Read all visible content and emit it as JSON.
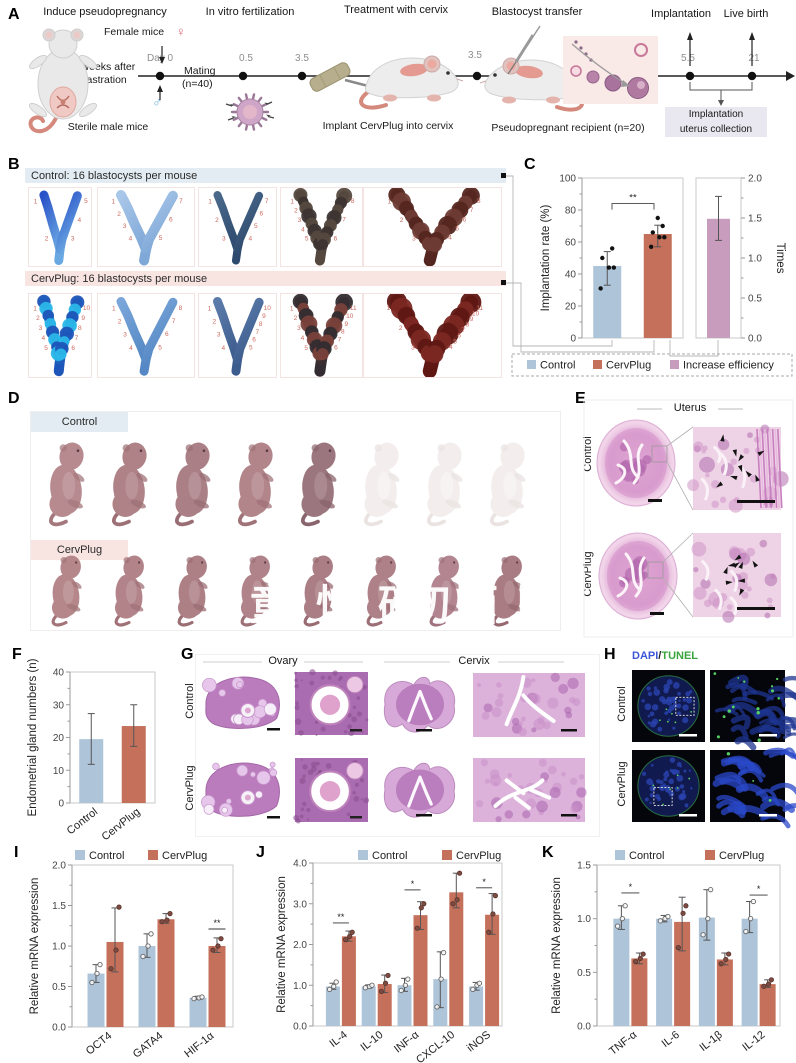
{
  "colors": {
    "control": "#aec4d9",
    "cervplug": "#c4705a",
    "increase": "#c79cbc",
    "red_number": "#cc6a5f",
    "dapi_blue": "#3d56d6",
    "tunel_green": "#3aa53f"
  },
  "panels": {
    "a": {
      "label": "A",
      "steps": [
        "Induce pseudopregnancy",
        "In vitro fertilization",
        "Treatment with cervix",
        "Blastocyst transfer",
        "Implantation",
        "Live birth"
      ],
      "female_mice": "Female mice",
      "female_symbol": "♀",
      "male_symbol": "♂",
      "day0": "Day 0",
      "weeks": "2 weeks after",
      "castration": "castration",
      "mating": "Mating",
      "mating_n": "(n=40)",
      "sterile": "Sterile male mice",
      "timepoints": [
        "0.5",
        "3.5",
        "3.5",
        "5.5",
        "21"
      ],
      "implant": "Implant CervPlug into cervix",
      "recipient": "Pseudopregnant recipient (n=20)",
      "collection": [
        "Implantation",
        "uterus collection"
      ]
    },
    "b": {
      "label": "B",
      "control_header": "Control: 16 blastocysts per mouse",
      "cervplug_header": "CervPlug: 16 blastocysts per mouse"
    },
    "c": {
      "label": "C"
    },
    "d": {
      "label": "D",
      "control": "Control",
      "cervplug": "CervPlug",
      "watermark": "童怛砖切陌卜"
    },
    "e": {
      "label": "E",
      "title": "Uterus",
      "rows": [
        "Control",
        "CervPlug"
      ]
    },
    "f": {
      "label": "F"
    },
    "g": {
      "label": "G",
      "titles": [
        "Ovary",
        "Cervix"
      ],
      "rows": [
        "Control",
        "CervPlug"
      ]
    },
    "h": {
      "label": "H",
      "title_parts": [
        "DAPI",
        "/",
        "TUNEL"
      ],
      "rows": [
        "Control",
        "CervPlug"
      ]
    },
    "i": {
      "label": "I"
    },
    "j": {
      "label": "J"
    },
    "k": {
      "label": "K"
    }
  },
  "b_images": {
    "control": [
      {
        "color": "#2a52c8",
        "color2": "#6aa8e2",
        "w": 9,
        "beads": false,
        "nums_l": [
          "1",
          "2"
        ],
        "nums_r": [
          "3",
          "4",
          "5"
        ]
      },
      {
        "color": "#a9c7e9",
        "color2": "#7fa8d8",
        "w": 10,
        "beads": false,
        "nums_l": [
          "1",
          "2",
          "3",
          "4"
        ],
        "nums_r": [
          "5",
          "6",
          "7"
        ]
      },
      {
        "color": "#49688a",
        "color2": "#2e4a6e",
        "w": 8,
        "beads": false,
        "nums_l": [
          "1",
          "2",
          "3"
        ],
        "nums_r": [
          "4",
          "5",
          "6",
          "7"
        ]
      },
      {
        "color": "#3d3533",
        "color2": "#55493f",
        "w": 10,
        "beads": true,
        "nums_l": [
          "1",
          "2",
          "3",
          "4",
          "5"
        ],
        "nums_r": [
          "6",
          "7",
          "8"
        ]
      },
      {
        "color": "#6e3b34",
        "color2": "#54261f",
        "w": 12,
        "beads": true,
        "nums_l": [
          "1",
          "2",
          "3"
        ],
        "nums_r": [
          "4",
          "5",
          "6",
          "7",
          "8"
        ]
      }
    ],
    "cervplug": [
      {
        "color": "#2bb7e8",
        "color2": "#1d55b8",
        "w": 10,
        "beads": true,
        "nums_l": [
          "1",
          "2",
          "3",
          "4",
          "5"
        ],
        "nums_r": [
          "6",
          "7",
          "8",
          "9",
          "10"
        ]
      },
      {
        "color": "#7aa6da",
        "color2": "#5588c4",
        "w": 9,
        "beads": false,
        "nums_l": [
          "1",
          "2",
          "3",
          "4"
        ],
        "nums_r": [
          "5",
          "6",
          "7",
          "8"
        ]
      },
      {
        "color": "#5b7cab",
        "color2": "#3d5c8e",
        "w": 9,
        "beads": false,
        "nums_l": [
          "1",
          "2",
          "3",
          "4"
        ],
        "nums_r": [
          "5",
          "6",
          "7",
          "8",
          "9",
          "10"
        ]
      },
      {
        "color": "#79413a",
        "color2": "#332c30",
        "w": 11,
        "beads": true,
        "nums_l": [
          "1",
          "2",
          "3",
          "4",
          "5"
        ],
        "nums_r": [
          "6",
          "7",
          "8",
          "9",
          "10",
          "11"
        ]
      },
      {
        "color": "#7c2822",
        "color2": "#5e1713",
        "w": 14,
        "beads": true,
        "nums_l": [
          "1",
          "2",
          "3"
        ],
        "nums_r": [
          "4",
          "5",
          "6",
          "7",
          "8",
          "9",
          "10",
          "11"
        ]
      }
    ]
  },
  "d_pups": {
    "control": [
      "#b68a8e",
      "#af8287",
      "#aa7f86",
      "#b2858a",
      "#9c767e",
      "ghost",
      "ghost",
      "ghost"
    ],
    "cervplug": [
      "#b5878b",
      "#b2848a",
      "#ad8086",
      "#b08289",
      "#ab7d84",
      "#ae8188",
      "#b28590",
      "#a97c83"
    ]
  },
  "chart_data": [
    {
      "id": "C",
      "type": "bar",
      "ylabel": "Implantation rate (%)",
      "ylim": [
        0,
        100
      ],
      "yticks": [
        0,
        20,
        40,
        60,
        80,
        100
      ],
      "groups": [
        {
          "cat": "Control",
          "bars": [
            {
              "series": "Control",
              "v": 45,
              "e": [
                33,
                54
              ],
              "dots": [
                31,
                44,
                44,
                50,
                56
              ]
            }
          ]
        },
        {
          "cat": "CervPlug",
          "bars": [
            {
              "series": "CervPlug",
              "v": 65,
              "e": [
                57,
                70.5
              ],
              "dots": [
                57,
                63,
                63,
                66,
                70,
                75
              ]
            }
          ]
        }
      ],
      "significance": [
        {
          "label": "**",
          "y": 84
        }
      ],
      "secondary": {
        "ylabel": "Times",
        "ylim": [
          0,
          2
        ],
        "yticks": [
          "0.0",
          "0.5",
          "1.0",
          "1.5",
          "2.0"
        ],
        "bar": {
          "series": "Increase efficiency",
          "v": 1.49,
          "e": [
            1.22,
            1.77
          ]
        }
      },
      "legend": [
        "Control",
        "CervPlug",
        "Increase efficiency"
      ]
    },
    {
      "id": "F",
      "type": "bar",
      "ylabel": "Endometrial gland numbers (n)",
      "ylim": [
        0,
        40
      ],
      "yticks": [
        0,
        10,
        20,
        30,
        40
      ],
      "groups": [
        {
          "cat": "Control",
          "bars": [
            {
              "series": "Control",
              "v": 19.5,
              "e": [
                11.8,
                27.3
              ]
            }
          ]
        },
        {
          "cat": "CervPlug",
          "bars": [
            {
              "series": "CervPlug",
              "v": 23.5,
              "e": [
                17.3,
                30
              ]
            }
          ]
        }
      ]
    },
    {
      "id": "I",
      "type": "bar",
      "ylabel": "Relative mRNA expression",
      "ylim": [
        0,
        2
      ],
      "yticks": [
        "0.0",
        "0.5",
        "1.0",
        "1.5",
        "2.0"
      ],
      "legend": [
        "Control",
        "CervPlug"
      ],
      "groups": [
        {
          "cat": "OCT4",
          "bars": [
            {
              "v": 0.66,
              "e": [
                0.55,
                0.77
              ],
              "dots": [
                0.55,
                0.66,
                0.77
              ]
            },
            {
              "v": 1.05,
              "e": [
                0.68,
                1.47
              ],
              "dots": [
                0.72,
                0.95,
                1.48
              ]
            }
          ]
        },
        {
          "cat": "GATA4",
          "bars": [
            {
              "v": 1.0,
              "e": [
                0.86,
                1.15
              ],
              "dots": [
                0.87,
                1.0,
                1.15
              ]
            },
            {
              "v": 1.33,
              "e": [
                1.28,
                1.4
              ],
              "dots": [
                1.3,
                1.32,
                1.4
              ]
            }
          ]
        },
        {
          "cat": "HIF-1α",
          "bars": [
            {
              "v": 0.36,
              "e": [
                0.34,
                0.38
              ],
              "dots": [
                0.35,
                0.36,
                0.37
              ]
            },
            {
              "v": 1.0,
              "e": [
                0.92,
                1.1
              ],
              "dots": [
                0.95,
                1.0,
                1.09
              ]
            }
          ]
        }
      ],
      "significance": [
        {
          "label": "**",
          "g": 2,
          "span": "bar2",
          "y": 1.21
        }
      ]
    },
    {
      "id": "J",
      "type": "bar",
      "ylabel": "Relative mRNA expression",
      "ylim": [
        0,
        4
      ],
      "yticks": [
        "0.0",
        "1.0",
        "2.0",
        "3.0",
        "4.0"
      ],
      "legend": [
        "Control",
        "CervPlug"
      ],
      "groups": [
        {
          "cat": "IL-4",
          "bars": [
            {
              "v": 0.97,
              "e": [
                0.9,
                1.05
              ],
              "dots": [
                0.9,
                0.97,
                1.08
              ]
            },
            {
              "v": 2.2,
              "e": [
                2.08,
                2.33
              ],
              "dots": [
                2.12,
                2.2,
                2.3
              ]
            }
          ]
        },
        {
          "cat": "IL-10",
          "bars": [
            {
              "v": 0.97,
              "e": [
                0.93,
                1.01
              ],
              "dots": [
                0.94,
                0.97,
                1.0
              ]
            },
            {
              "v": 1.03,
              "e": [
                0.82,
                1.25
              ],
              "dots": [
                0.85,
                1.05,
                1.24
              ]
            }
          ]
        },
        {
          "cat": "INF-α",
          "bars": [
            {
              "v": 1.0,
              "e": [
                0.85,
                1.17
              ],
              "dots": [
                0.87,
                1.0,
                1.15
              ]
            },
            {
              "v": 2.72,
              "e": [
                2.37,
                3.05
              ],
              "dots": [
                2.4,
                2.9,
                3.0
              ]
            }
          ]
        },
        {
          "cat": "CXCL-10",
          "bars": [
            {
              "v": 1.15,
              "e": [
                0.45,
                1.82
              ],
              "dots": [
                0.47,
                1.15,
                1.8
              ]
            },
            {
              "v": 3.28,
              "e": [
                2.9,
                3.75
              ],
              "dots": [
                3.0,
                3.1,
                3.75
              ]
            }
          ]
        },
        {
          "cat": "iNOS",
          "bars": [
            {
              "v": 0.97,
              "e": [
                0.88,
                1.07
              ],
              "dots": [
                0.9,
                1.0,
                1.05
              ]
            },
            {
              "v": 2.73,
              "e": [
                2.25,
                3.25
              ],
              "dots": [
                2.3,
                2.75,
                3.2
              ]
            }
          ]
        }
      ],
      "significance": [
        {
          "label": "**",
          "g": 0,
          "span": "pair",
          "y": 2.53
        },
        {
          "label": "*",
          "g": 2,
          "span": "pair",
          "y": 3.34
        },
        {
          "label": "*",
          "g": 4,
          "span": "pair",
          "y": 3.39
        }
      ]
    },
    {
      "id": "K",
      "type": "bar",
      "ylabel": "Relative mRNA expression",
      "ylim": [
        0,
        1.5
      ],
      "yticks": [
        "0.0",
        "0.5",
        "1.0",
        "1.5"
      ],
      "legend": [
        "Control",
        "CervPlug"
      ],
      "groups": [
        {
          "cat": "TNF-α",
          "bars": [
            {
              "v": 1.0,
              "e": [
                0.9,
                1.12
              ],
              "dots": [
                0.93,
                1.0,
                1.12
              ]
            },
            {
              "v": 0.63,
              "e": [
                0.58,
                0.68
              ],
              "dots": [
                0.6,
                0.63,
                0.67
              ]
            }
          ]
        },
        {
          "cat": "IL-6",
          "bars": [
            {
              "v": 1.0,
              "e": [
                0.97,
                1.03
              ],
              "dots": [
                0.98,
                1.0,
                1.02
              ]
            },
            {
              "v": 0.97,
              "e": [
                0.7,
                1.2
              ],
              "dots": [
                0.73,
                1.05,
                1.12
              ]
            }
          ]
        },
        {
          "cat": "IL-1β",
          "bars": [
            {
              "v": 1.01,
              "e": [
                0.8,
                1.27
              ],
              "dots": [
                0.85,
                1.0,
                1.27
              ]
            },
            {
              "v": 0.62,
              "e": [
                0.57,
                0.68
              ],
              "dots": [
                0.58,
                0.62,
                0.67
              ]
            }
          ]
        },
        {
          "cat": "IL-12",
          "bars": [
            {
              "v": 1.0,
              "e": [
                0.87,
                1.16
              ],
              "dots": [
                0.88,
                1.0,
                1.16
              ]
            },
            {
              "v": 0.39,
              "e": [
                0.36,
                0.43
              ],
              "dots": [
                0.37,
                0.39,
                0.43
              ]
            }
          ]
        }
      ],
      "significance": [
        {
          "label": "*",
          "g": 0,
          "span": "pair",
          "y": 1.24
        },
        {
          "label": "*",
          "g": 3,
          "span": "pair",
          "y": 1.22
        }
      ]
    }
  ]
}
